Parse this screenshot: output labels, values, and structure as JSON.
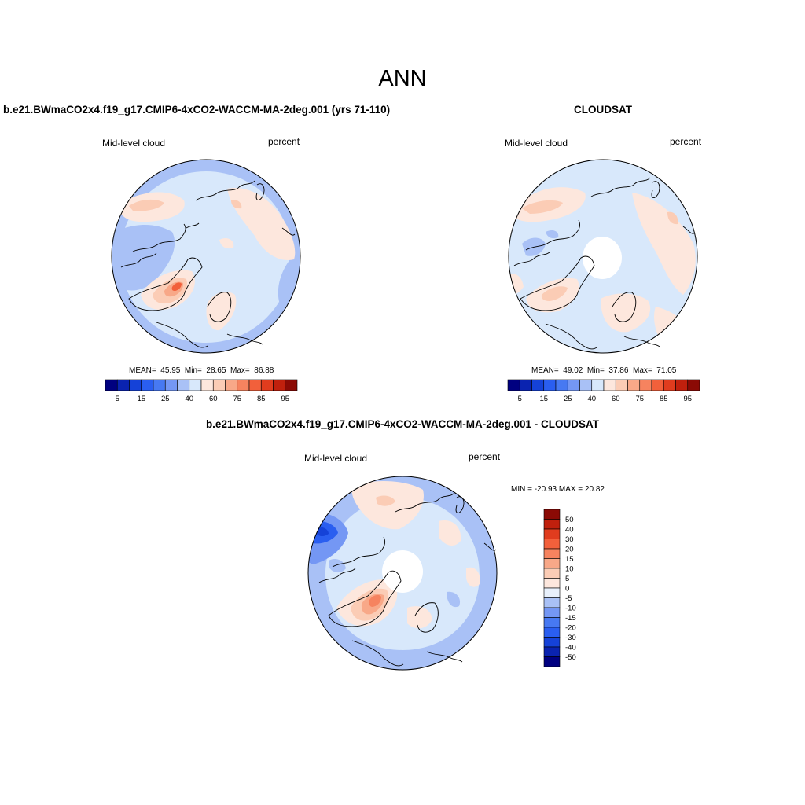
{
  "figure": {
    "title": "ANN",
    "colors": {
      "n50": "#000080",
      "n40": "#0a23b0",
      "n30": "#1542d8",
      "n20": "#2a5ef0",
      "n15": "#4779f2",
      "n10": "#7497f4",
      "n5": "#a9c1f6",
      "n0": "#d8e8fb",
      "p0": "#fde7dd",
      "p5": "#fbccb5",
      "p10": "#f8a888",
      "p15": "#f6835f",
      "p20": "#f2603b",
      "p30": "#e03c1e",
      "p40": "#c0200d",
      "p50": "#8b0a05",
      "coast": "#000000"
    }
  },
  "panels": [
    {
      "id": "model",
      "title": "b.e21.BWmaCO2x4.f19_g17.CMIP6-4xCO2-WACCM-MA-2deg.001 (yrs 71-110)",
      "left_label": "Mid-level cloud",
      "right_label": "percent",
      "mean_label": "MEAN=",
      "mean": "45.95",
      "min_label": "Min=",
      "min": "28.65",
      "max_label": "Max=",
      "max": "86.88",
      "colorbar": {
        "colors": [
          "#000080",
          "#0a23b0",
          "#1542d8",
          "#2a5ef0",
          "#4779f2",
          "#7497f4",
          "#a9c1f6",
          "#d8e8fb",
          "#fde7dd",
          "#fbccb5",
          "#f8a888",
          "#f6835f",
          "#f2603b",
          "#e03c1e",
          "#c0200d",
          "#8b0a05"
        ],
        "ticks": [
          "5",
          "15",
          "25",
          "40",
          "60",
          "75",
          "85",
          "95"
        ]
      }
    },
    {
      "id": "obs",
      "title": "CLOUDSAT",
      "left_label": "Mid-level cloud",
      "right_label": "percent",
      "mean_label": "MEAN=",
      "mean": "49.02",
      "min_label": "Min=",
      "min": "37.86",
      "max_label": "Max=",
      "max": "71.05",
      "colorbar": {
        "colors": [
          "#000080",
          "#0a23b0",
          "#1542d8",
          "#2a5ef0",
          "#4779f2",
          "#7497f4",
          "#a9c1f6",
          "#d8e8fb",
          "#fde7dd",
          "#fbccb5",
          "#f8a888",
          "#f6835f",
          "#f2603b",
          "#e03c1e",
          "#c0200d",
          "#8b0a05"
        ],
        "ticks": [
          "5",
          "15",
          "25",
          "40",
          "60",
          "75",
          "85",
          "95"
        ]
      }
    },
    {
      "id": "diff",
      "title": "b.e21.BWmaCO2x4.f19_g17.CMIP6-4xCO2-WACCM-MA-2deg.001 - CLOUDSAT",
      "left_label": "Mid-level cloud",
      "right_label": "percent",
      "minmax": "MIN = -20.93 MAX =  20.82",
      "colorbar": {
        "colors": [
          "#8b0a05",
          "#c0200d",
          "#e03c1e",
          "#f2603b",
          "#f6835f",
          "#f8a888",
          "#fbccb5",
          "#fde7dd",
          "#e8f0fb",
          "#a9c1f6",
          "#7497f4",
          "#4779f2",
          "#2a5ef0",
          "#1542d8",
          "#0a23b0",
          "#000080"
        ],
        "ticks": [
          "50",
          "40",
          "30",
          "20",
          "15",
          "10",
          "5",
          "0",
          "-5",
          "-10",
          "-15",
          "-20",
          "-30",
          "-40",
          "-50"
        ]
      }
    }
  ]
}
